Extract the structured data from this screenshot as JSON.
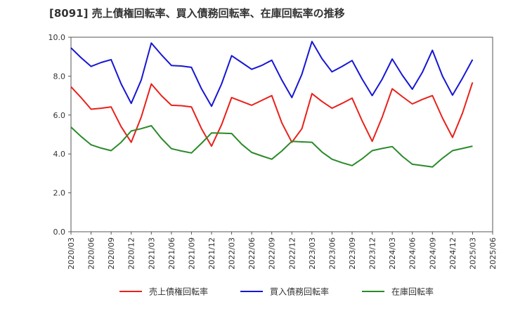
{
  "chart_data": {
    "type": "line",
    "title": "[8091]  売上債権回転率、買入債務回転率、在庫回転率の推移",
    "xlabel": "",
    "ylabel": "",
    "ylim": [
      0,
      10
    ],
    "yticks": [
      "0.0",
      "2.0",
      "4.0",
      "6.0",
      "8.0",
      "10.0"
    ],
    "categories": [
      "2020/03",
      "2020/06",
      "2020/09",
      "2020/12",
      "2021/03",
      "2021/06",
      "2021/09",
      "2021/12",
      "2022/03",
      "2022/06",
      "2022/09",
      "2022/12",
      "2023/03",
      "2023/06",
      "2023/09",
      "2023/12",
      "2024/03",
      "2024/06",
      "2024/09",
      "2024/12",
      "2025/03",
      "2025/06"
    ],
    "x": [
      0,
      0.5,
      1,
      1.5,
      2,
      2.5,
      3,
      3.5,
      4,
      4.5,
      5,
      5.5,
      6,
      6.5,
      7,
      7.5,
      8,
      8.5,
      9,
      9.5,
      10,
      10.5,
      11,
      11.5,
      12,
      12.5,
      13,
      13.5,
      14,
      14.5,
      15,
      15.5,
      16,
      16.5,
      17,
      17.5,
      18,
      18.5,
      19,
      19.5,
      20
    ],
    "series": [
      {
        "name": "売上債権回転率",
        "color": "#e8211a",
        "values": [
          7.45,
          6.9,
          6.3,
          6.35,
          6.42,
          5.4,
          4.6,
          5.9,
          7.6,
          7.0,
          6.5,
          6.48,
          6.42,
          5.3,
          4.4,
          5.5,
          6.9,
          6.7,
          6.5,
          6.75,
          7.0,
          5.6,
          4.6,
          5.3,
          7.1,
          6.7,
          6.35,
          6.6,
          6.87,
          5.7,
          4.65,
          5.9,
          7.35,
          6.95,
          6.57,
          6.8,
          7.0,
          5.85,
          4.85,
          6.1,
          7.68
        ]
      },
      {
        "name": "買入債務回転率",
        "color": "#1616d4",
        "values": [
          9.45,
          8.95,
          8.5,
          8.7,
          8.85,
          7.6,
          6.6,
          7.8,
          9.7,
          9.1,
          8.55,
          8.52,
          8.45,
          7.35,
          6.45,
          7.6,
          9.05,
          8.7,
          8.35,
          8.55,
          8.82,
          7.8,
          6.9,
          8.1,
          9.78,
          8.9,
          8.22,
          8.5,
          8.8,
          7.85,
          7.0,
          7.85,
          8.88,
          8.05,
          7.33,
          8.2,
          9.33,
          8.0,
          7.02,
          7.9,
          8.85
        ]
      },
      {
        "name": "在庫回転率",
        "color": "#2a8a2a",
        "values": [
          5.38,
          4.9,
          4.47,
          4.3,
          4.17,
          4.6,
          5.18,
          5.3,
          5.45,
          4.8,
          4.27,
          4.15,
          4.05,
          4.55,
          5.08,
          5.07,
          5.05,
          4.5,
          4.08,
          3.9,
          3.73,
          4.15,
          4.65,
          4.62,
          4.6,
          4.1,
          3.73,
          3.55,
          3.4,
          3.75,
          4.17,
          4.28,
          4.38,
          3.88,
          3.47,
          3.4,
          3.33,
          3.78,
          4.17,
          4.28,
          4.4
        ]
      }
    ],
    "legend_position": "bottom-center",
    "grid": false
  }
}
